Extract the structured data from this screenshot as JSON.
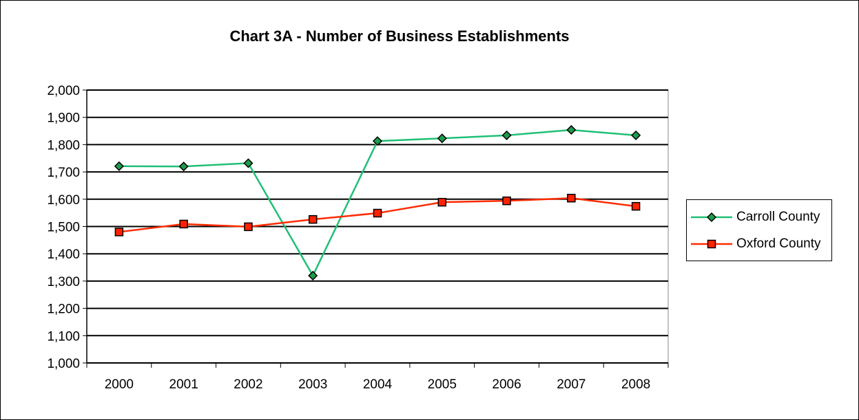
{
  "chart_data": {
    "type": "line",
    "title": "Chart 3A - Number of Business Establishments",
    "xlabel": "",
    "ylabel": "",
    "categories": [
      "2000",
      "2001",
      "2002",
      "2003",
      "2004",
      "2005",
      "2006",
      "2007",
      "2008"
    ],
    "ylim": [
      1000,
      2000
    ],
    "ytick_step": 100,
    "yticks": [
      "1,000",
      "1,100",
      "1,200",
      "1,300",
      "1,400",
      "1,500",
      "1,600",
      "1,700",
      "1,800",
      "1,900",
      "2,000"
    ],
    "grid": true,
    "legend_position": "right",
    "series": [
      {
        "name": "Carroll County",
        "values": [
          1721,
          1720,
          1732,
          1320,
          1813,
          1823,
          1834,
          1854,
          1834
        ],
        "color": "#1fbf75",
        "marker": "diamond",
        "marker_color": "#1e9b4c"
      },
      {
        "name": "Oxford County",
        "values": [
          1480,
          1509,
          1499,
          1526,
          1549,
          1589,
          1594,
          1604,
          1574
        ],
        "color": "#ff2a00",
        "marker": "square",
        "marker_color": "#ff2200"
      }
    ]
  }
}
